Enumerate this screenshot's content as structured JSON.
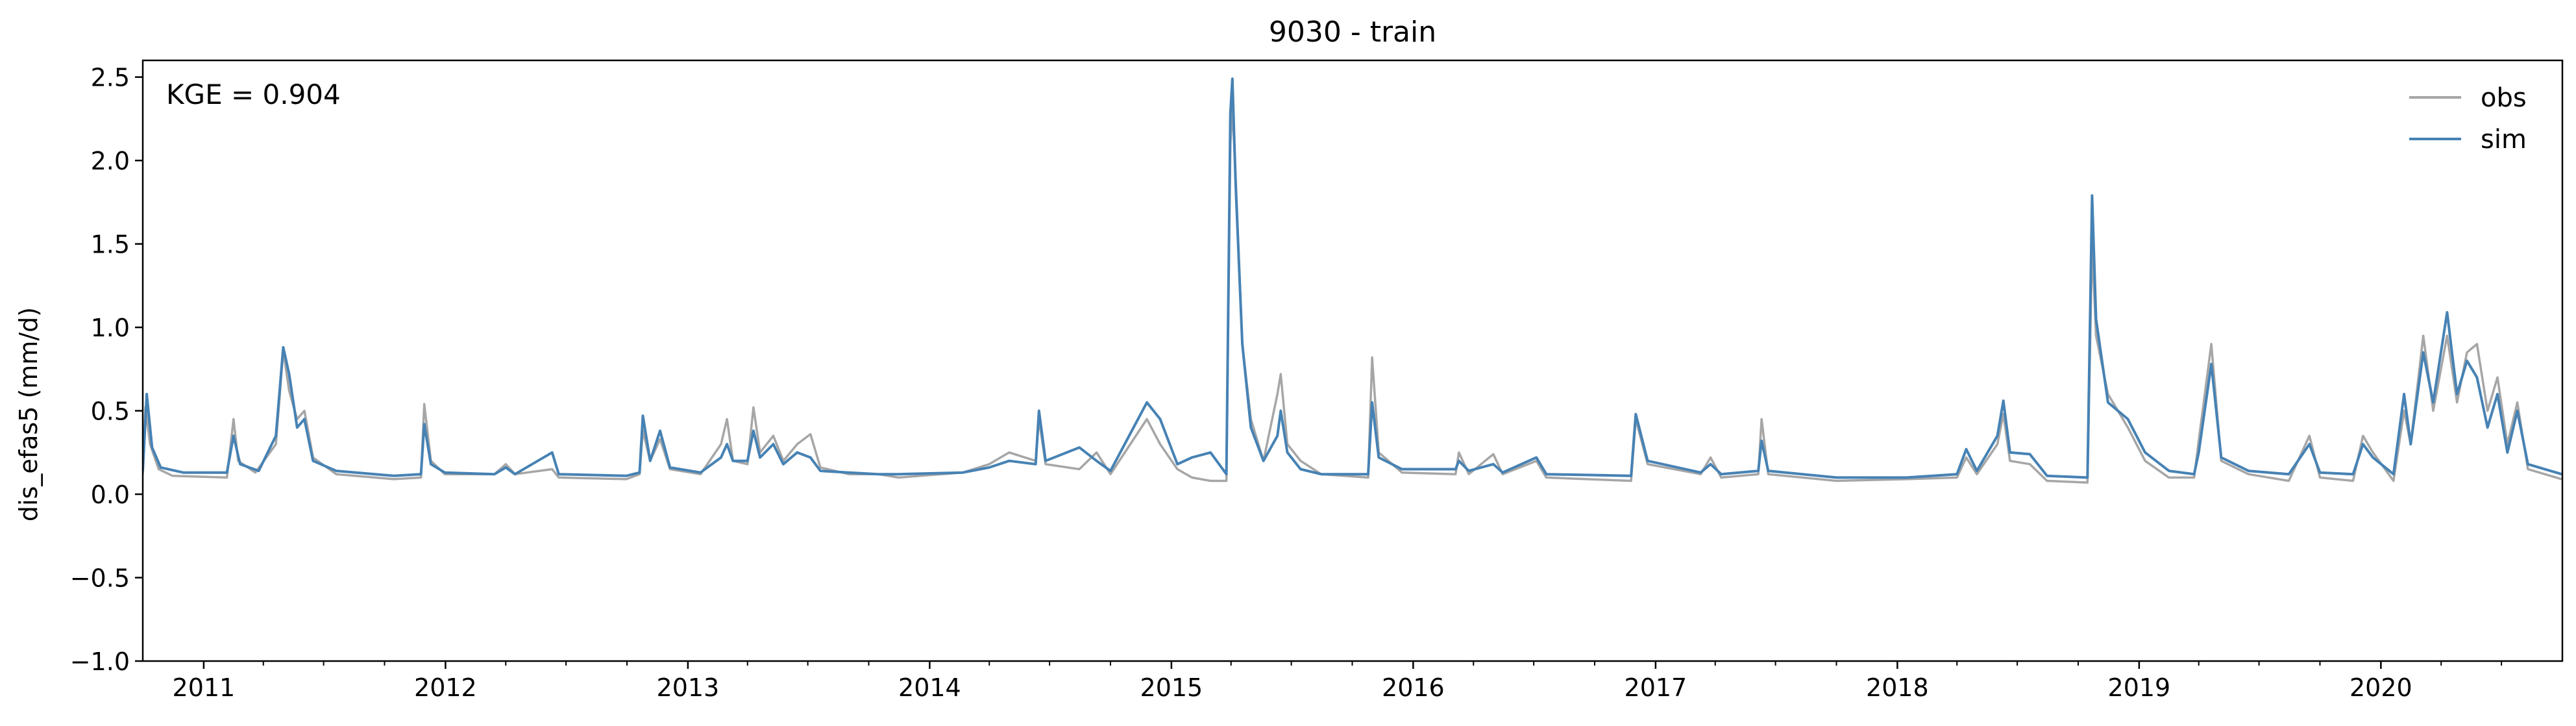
{
  "chart_data": {
    "type": "line",
    "title": "9030 - train",
    "ylabel": "dis_efas5 (mm/d)",
    "xlabel": "",
    "annotation": "KGE = 0.904",
    "xlim": [
      "2010-10-01",
      "2020-09-30"
    ],
    "ylim": [
      -1.0,
      2.6
    ],
    "yticks": [
      -1.0,
      -0.5,
      0.0,
      0.5,
      1.0,
      1.5,
      2.0,
      2.5
    ],
    "ytick_labels": [
      "−1.0",
      "−0.5",
      "0.0",
      "0.5",
      "1.0",
      "1.5",
      "2.0",
      "2.5"
    ],
    "xticks": [
      "2011-01-01",
      "2012-01-01",
      "2013-01-01",
      "2014-01-01",
      "2015-01-01",
      "2016-01-01",
      "2017-01-01",
      "2018-01-01",
      "2019-01-01",
      "2020-01-01"
    ],
    "xtick_labels": [
      "2011",
      "2012",
      "2013",
      "2014",
      "2015",
      "2016",
      "2017",
      "2018",
      "2019",
      "2020"
    ],
    "grid": false,
    "legend_position": "top-right",
    "legend_frame": false,
    "series": [
      {
        "name": "obs",
        "color": "#a6a6a6",
        "points": [
          [
            "2010-10-01",
            0.12
          ],
          [
            "2010-10-05",
            0.52
          ],
          [
            "2010-10-12",
            0.3
          ],
          [
            "2010-10-25",
            0.15
          ],
          [
            "2010-11-15",
            0.11
          ],
          [
            "2011-02-05",
            0.1
          ],
          [
            "2011-02-15",
            0.45
          ],
          [
            "2011-02-22",
            0.2
          ],
          [
            "2011-03-20",
            0.13
          ],
          [
            "2011-04-20",
            0.3
          ],
          [
            "2011-05-01",
            0.86
          ],
          [
            "2011-05-10",
            0.62
          ],
          [
            "2011-05-22",
            0.45
          ],
          [
            "2011-06-02",
            0.5
          ],
          [
            "2011-06-15",
            0.22
          ],
          [
            "2011-07-20",
            0.12
          ],
          [
            "2011-10-15",
            0.09
          ],
          [
            "2011-11-25",
            0.1
          ],
          [
            "2011-11-30",
            0.54
          ],
          [
            "2011-12-10",
            0.2
          ],
          [
            "2011-12-31",
            0.12
          ],
          [
            "2012-03-15",
            0.12
          ],
          [
            "2012-04-01",
            0.18
          ],
          [
            "2012-04-15",
            0.12
          ],
          [
            "2012-06-10",
            0.15
          ],
          [
            "2012-06-20",
            0.1
          ],
          [
            "2012-09-30",
            0.09
          ],
          [
            "2012-10-20",
            0.12
          ],
          [
            "2012-10-25",
            0.38
          ],
          [
            "2012-11-05",
            0.2
          ],
          [
            "2012-11-20",
            0.33
          ],
          [
            "2012-12-05",
            0.15
          ],
          [
            "2013-01-20",
            0.12
          ],
          [
            "2013-02-20",
            0.3
          ],
          [
            "2013-03-01",
            0.45
          ],
          [
            "2013-03-10",
            0.2
          ],
          [
            "2013-04-01",
            0.18
          ],
          [
            "2013-04-10",
            0.52
          ],
          [
            "2013-04-20",
            0.25
          ],
          [
            "2013-05-10",
            0.35
          ],
          [
            "2013-05-25",
            0.2
          ],
          [
            "2013-06-15",
            0.3
          ],
          [
            "2013-07-05",
            0.36
          ],
          [
            "2013-07-20",
            0.16
          ],
          [
            "2013-09-01",
            0.12
          ],
          [
            "2013-10-15",
            0.12
          ],
          [
            "2013-11-15",
            0.1
          ],
          [
            "2014-02-20",
            0.13
          ],
          [
            "2014-04-01",
            0.18
          ],
          [
            "2014-05-01",
            0.25
          ],
          [
            "2014-06-10",
            0.2
          ],
          [
            "2014-06-15",
            0.45
          ],
          [
            "2014-06-25",
            0.18
          ],
          [
            "2014-08-15",
            0.15
          ],
          [
            "2014-09-10",
            0.25
          ],
          [
            "2014-10-01",
            0.12
          ],
          [
            "2014-11-25",
            0.45
          ],
          [
            "2014-12-15",
            0.3
          ],
          [
            "2015-01-10",
            0.15
          ],
          [
            "2015-02-01",
            0.1
          ],
          [
            "2015-03-01",
            0.08
          ],
          [
            "2015-03-25",
            0.08
          ],
          [
            "2015-03-31",
            2.1
          ],
          [
            "2015-04-03",
            2.32
          ],
          [
            "2015-04-08",
            1.9
          ],
          [
            "2015-04-18",
            0.9
          ],
          [
            "2015-05-01",
            0.45
          ],
          [
            "2015-05-20",
            0.2
          ],
          [
            "2015-06-10",
            0.6
          ],
          [
            "2015-06-15",
            0.72
          ],
          [
            "2015-06-25",
            0.3
          ],
          [
            "2015-07-15",
            0.2
          ],
          [
            "2015-08-15",
            0.12
          ],
          [
            "2015-10-25",
            0.1
          ],
          [
            "2015-10-31",
            0.82
          ],
          [
            "2015-11-10",
            0.25
          ],
          [
            "2015-12-15",
            0.13
          ],
          [
            "2016-03-05",
            0.12
          ],
          [
            "2016-03-10",
            0.25
          ],
          [
            "2016-03-25",
            0.12
          ],
          [
            "2016-05-01",
            0.24
          ],
          [
            "2016-05-15",
            0.12
          ],
          [
            "2016-07-05",
            0.2
          ],
          [
            "2016-07-20",
            0.1
          ],
          [
            "2016-11-25",
            0.08
          ],
          [
            "2016-12-02",
            0.45
          ],
          [
            "2016-12-20",
            0.18
          ],
          [
            "2017-03-10",
            0.12
          ],
          [
            "2017-03-25",
            0.22
          ],
          [
            "2017-04-10",
            0.1
          ],
          [
            "2017-06-05",
            0.12
          ],
          [
            "2017-06-10",
            0.45
          ],
          [
            "2017-06-20",
            0.12
          ],
          [
            "2017-10-01",
            0.08
          ],
          [
            "2018-01-15",
            0.09
          ],
          [
            "2018-04-01",
            0.1
          ],
          [
            "2018-04-15",
            0.22
          ],
          [
            "2018-05-01",
            0.12
          ],
          [
            "2018-06-01",
            0.3
          ],
          [
            "2018-06-10",
            0.48
          ],
          [
            "2018-06-20",
            0.2
          ],
          [
            "2018-07-20",
            0.18
          ],
          [
            "2018-08-15",
            0.08
          ],
          [
            "2018-10-15",
            0.07
          ],
          [
            "2018-10-22",
            1.5
          ],
          [
            "2018-10-28",
            0.95
          ],
          [
            "2018-11-15",
            0.6
          ],
          [
            "2018-12-15",
            0.4
          ],
          [
            "2019-01-10",
            0.2
          ],
          [
            "2019-02-15",
            0.1
          ],
          [
            "2019-03-25",
            0.1
          ],
          [
            "2019-04-01",
            0.32
          ],
          [
            "2019-04-20",
            0.9
          ],
          [
            "2019-05-05",
            0.2
          ],
          [
            "2019-06-15",
            0.12
          ],
          [
            "2019-08-15",
            0.08
          ],
          [
            "2019-09-15",
            0.35
          ],
          [
            "2019-10-01",
            0.1
          ],
          [
            "2019-11-20",
            0.08
          ],
          [
            "2019-12-05",
            0.35
          ],
          [
            "2019-12-20",
            0.25
          ],
          [
            "2020-01-20",
            0.08
          ],
          [
            "2020-02-05",
            0.5
          ],
          [
            "2020-02-15",
            0.3
          ],
          [
            "2020-03-05",
            0.95
          ],
          [
            "2020-03-20",
            0.5
          ],
          [
            "2020-04-10",
            0.95
          ],
          [
            "2020-04-25",
            0.55
          ],
          [
            "2020-05-10",
            0.85
          ],
          [
            "2020-05-25",
            0.9
          ],
          [
            "2020-06-10",
            0.5
          ],
          [
            "2020-06-25",
            0.7
          ],
          [
            "2020-07-10",
            0.3
          ],
          [
            "2020-07-25",
            0.55
          ],
          [
            "2020-08-10",
            0.15
          ],
          [
            "2020-09-30",
            0.09
          ]
        ]
      },
      {
        "name": "sim",
        "color": "#4682b4",
        "points": [
          [
            "2010-10-01",
            0.14
          ],
          [
            "2010-10-07",
            0.6
          ],
          [
            "2010-10-15",
            0.28
          ],
          [
            "2010-10-28",
            0.16
          ],
          [
            "2010-12-01",
            0.13
          ],
          [
            "2011-02-05",
            0.13
          ],
          [
            "2011-02-15",
            0.35
          ],
          [
            "2011-02-25",
            0.18
          ],
          [
            "2011-03-25",
            0.14
          ],
          [
            "2011-04-20",
            0.35
          ],
          [
            "2011-05-01",
            0.88
          ],
          [
            "2011-05-10",
            0.72
          ],
          [
            "2011-05-22",
            0.4
          ],
          [
            "2011-06-02",
            0.45
          ],
          [
            "2011-06-15",
            0.2
          ],
          [
            "2011-07-20",
            0.14
          ],
          [
            "2011-10-15",
            0.11
          ],
          [
            "2011-11-25",
            0.12
          ],
          [
            "2011-11-30",
            0.42
          ],
          [
            "2011-12-10",
            0.18
          ],
          [
            "2011-12-31",
            0.13
          ],
          [
            "2012-03-15",
            0.12
          ],
          [
            "2012-04-01",
            0.16
          ],
          [
            "2012-04-15",
            0.12
          ],
          [
            "2012-06-10",
            0.25
          ],
          [
            "2012-06-20",
            0.12
          ],
          [
            "2012-09-30",
            0.11
          ],
          [
            "2012-10-20",
            0.13
          ],
          [
            "2012-10-25",
            0.47
          ],
          [
            "2012-11-05",
            0.2
          ],
          [
            "2012-11-20",
            0.38
          ],
          [
            "2012-12-05",
            0.16
          ],
          [
            "2013-01-20",
            0.13
          ],
          [
            "2013-02-20",
            0.22
          ],
          [
            "2013-03-01",
            0.3
          ],
          [
            "2013-03-10",
            0.2
          ],
          [
            "2013-04-01",
            0.2
          ],
          [
            "2013-04-10",
            0.38
          ],
          [
            "2013-04-20",
            0.22
          ],
          [
            "2013-05-10",
            0.3
          ],
          [
            "2013-05-25",
            0.18
          ],
          [
            "2013-06-15",
            0.25
          ],
          [
            "2013-07-05",
            0.22
          ],
          [
            "2013-07-20",
            0.14
          ],
          [
            "2013-09-01",
            0.13
          ],
          [
            "2013-10-15",
            0.12
          ],
          [
            "2013-11-15",
            0.12
          ],
          [
            "2014-02-20",
            0.13
          ],
          [
            "2014-04-01",
            0.16
          ],
          [
            "2014-05-01",
            0.2
          ],
          [
            "2014-06-10",
            0.18
          ],
          [
            "2014-06-15",
            0.5
          ],
          [
            "2014-06-25",
            0.2
          ],
          [
            "2014-08-15",
            0.28
          ],
          [
            "2014-09-10",
            0.2
          ],
          [
            "2014-10-01",
            0.14
          ],
          [
            "2014-11-25",
            0.55
          ],
          [
            "2014-12-15",
            0.45
          ],
          [
            "2015-01-10",
            0.18
          ],
          [
            "2015-02-01",
            0.22
          ],
          [
            "2015-03-01",
            0.25
          ],
          [
            "2015-03-25",
            0.12
          ],
          [
            "2015-03-31",
            2.28
          ],
          [
            "2015-04-03",
            2.49
          ],
          [
            "2015-04-08",
            1.85
          ],
          [
            "2015-04-18",
            0.9
          ],
          [
            "2015-05-01",
            0.4
          ],
          [
            "2015-05-20",
            0.2
          ],
          [
            "2015-06-10",
            0.35
          ],
          [
            "2015-06-15",
            0.5
          ],
          [
            "2015-06-25",
            0.25
          ],
          [
            "2015-07-15",
            0.15
          ],
          [
            "2015-08-15",
            0.12
          ],
          [
            "2015-10-25",
            0.12
          ],
          [
            "2015-10-31",
            0.55
          ],
          [
            "2015-11-10",
            0.22
          ],
          [
            "2015-12-15",
            0.15
          ],
          [
            "2016-03-05",
            0.15
          ],
          [
            "2016-03-10",
            0.2
          ],
          [
            "2016-03-25",
            0.14
          ],
          [
            "2016-05-01",
            0.18
          ],
          [
            "2016-05-15",
            0.13
          ],
          [
            "2016-07-05",
            0.22
          ],
          [
            "2016-07-20",
            0.12
          ],
          [
            "2016-11-25",
            0.11
          ],
          [
            "2016-12-02",
            0.48
          ],
          [
            "2016-12-20",
            0.2
          ],
          [
            "2017-03-10",
            0.13
          ],
          [
            "2017-03-25",
            0.18
          ],
          [
            "2017-04-10",
            0.12
          ],
          [
            "2017-06-05",
            0.14
          ],
          [
            "2017-06-10",
            0.32
          ],
          [
            "2017-06-20",
            0.14
          ],
          [
            "2017-10-01",
            0.1
          ],
          [
            "2018-01-15",
            0.1
          ],
          [
            "2018-04-01",
            0.12
          ],
          [
            "2018-04-15",
            0.27
          ],
          [
            "2018-05-01",
            0.14
          ],
          [
            "2018-06-01",
            0.35
          ],
          [
            "2018-06-10",
            0.56
          ],
          [
            "2018-06-20",
            0.25
          ],
          [
            "2018-07-20",
            0.24
          ],
          [
            "2018-08-15",
            0.11
          ],
          [
            "2018-10-15",
            0.1
          ],
          [
            "2018-10-22",
            1.79
          ],
          [
            "2018-10-28",
            1.05
          ],
          [
            "2018-11-15",
            0.55
          ],
          [
            "2018-12-15",
            0.45
          ],
          [
            "2019-01-10",
            0.25
          ],
          [
            "2019-02-15",
            0.14
          ],
          [
            "2019-03-25",
            0.12
          ],
          [
            "2019-04-01",
            0.25
          ],
          [
            "2019-04-20",
            0.78
          ],
          [
            "2019-05-05",
            0.22
          ],
          [
            "2019-06-15",
            0.14
          ],
          [
            "2019-08-15",
            0.12
          ],
          [
            "2019-09-15",
            0.3
          ],
          [
            "2019-10-01",
            0.13
          ],
          [
            "2019-11-20",
            0.12
          ],
          [
            "2019-12-05",
            0.3
          ],
          [
            "2019-12-20",
            0.22
          ],
          [
            "2020-01-20",
            0.12
          ],
          [
            "2020-02-05",
            0.6
          ],
          [
            "2020-02-15",
            0.3
          ],
          [
            "2020-03-05",
            0.85
          ],
          [
            "2020-03-20",
            0.55
          ],
          [
            "2020-04-10",
            1.09
          ],
          [
            "2020-04-25",
            0.6
          ],
          [
            "2020-05-10",
            0.8
          ],
          [
            "2020-05-25",
            0.7
          ],
          [
            "2020-06-10",
            0.4
          ],
          [
            "2020-06-25",
            0.6
          ],
          [
            "2020-07-10",
            0.25
          ],
          [
            "2020-07-25",
            0.5
          ],
          [
            "2020-08-10",
            0.18
          ],
          [
            "2020-09-30",
            0.12
          ]
        ]
      }
    ]
  }
}
